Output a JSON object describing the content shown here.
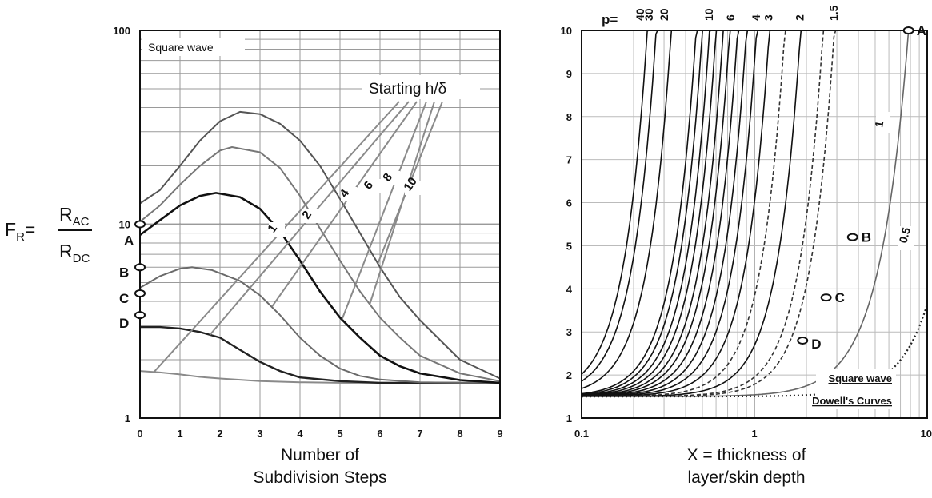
{
  "y_label": {
    "prefix": "F",
    "prefix_sub": "R",
    "eq": "=",
    "num": "R",
    "num_sub": "AC",
    "den": "R",
    "den_sub": "DC"
  },
  "chart_data": [
    {
      "type": "line",
      "y_scale": "log",
      "annotation": "Square wave",
      "legend_title": "Starting h/δ",
      "xlabel": [
        "Number of",
        "Subdivision Steps"
      ],
      "x_ticks": [
        "0",
        "1",
        "2",
        "3",
        "4",
        "5",
        "6",
        "7",
        "8",
        "9"
      ],
      "y_ticks": [
        "1",
        "10",
        "100"
      ],
      "xlim": [
        0,
        9
      ],
      "ylim": [
        1,
        100
      ],
      "grid": true,
      "series": [
        {
          "name": "1",
          "x": [
            0,
            0.5,
            1,
            1.5,
            2,
            3,
            4,
            5,
            6,
            7,
            8,
            9
          ],
          "y": [
            1.75,
            1.72,
            1.68,
            1.63,
            1.6,
            1.55,
            1.53,
            1.52,
            1.52,
            1.52,
            1.52,
            1.52
          ]
        },
        {
          "name": "2",
          "x": [
            0,
            0.5,
            1,
            1.5,
            2,
            2.5,
            3,
            3.5,
            4,
            5,
            6,
            7,
            8,
            9
          ],
          "y": [
            2.95,
            2.95,
            2.9,
            2.78,
            2.6,
            2.25,
            1.95,
            1.75,
            1.62,
            1.55,
            1.52,
            1.52,
            1.52,
            1.52
          ]
        },
        {
          "name": "4",
          "x": [
            0,
            0.5,
            1,
            1.3,
            1.8,
            2.5,
            3,
            3.5,
            4,
            4.5,
            5,
            5.5,
            6,
            7,
            8,
            9
          ],
          "y": [
            4.7,
            5.4,
            5.9,
            6.0,
            5.8,
            5.1,
            4.3,
            3.4,
            2.6,
            2.1,
            1.8,
            1.65,
            1.58,
            1.53,
            1.52,
            1.52
          ]
        },
        {
          "name": "6",
          "x": [
            0,
            0.5,
            1,
            1.5,
            1.9,
            2.5,
            3,
            3.5,
            4,
            4.5,
            5,
            5.5,
            6,
            6.5,
            7,
            8,
            9
          ],
          "y": [
            8.8,
            10.5,
            12.5,
            14,
            14.5,
            13.8,
            12,
            9.2,
            6.5,
            4.5,
            3.3,
            2.6,
            2.1,
            1.85,
            1.7,
            1.57,
            1.52
          ]
        },
        {
          "name": "8",
          "x": [
            0,
            0.5,
            1,
            1.5,
            2,
            2.3,
            3,
            3.5,
            4,
            4.5,
            5,
            5.5,
            6,
            6.5,
            7,
            8,
            9
          ],
          "y": [
            10.3,
            12.5,
            16,
            20,
            24,
            25,
            23.5,
            19.5,
            14,
            9.5,
            6.5,
            4.5,
            3.3,
            2.6,
            2.1,
            1.7,
            1.55
          ]
        },
        {
          "name": "10",
          "x": [
            0,
            0.5,
            1,
            1.5,
            2,
            2.5,
            3,
            3.5,
            4,
            4.5,
            5,
            5.5,
            6,
            6.5,
            7,
            8,
            9
          ],
          "y": [
            12.8,
            15,
            20,
            27,
            34,
            38,
            37,
            33,
            27,
            20,
            13.5,
            9,
            6,
            4.2,
            3.2,
            2.0,
            1.6
          ]
        }
      ],
      "points": [
        {
          "label": "A",
          "x": 0,
          "y": 10
        },
        {
          "label": "B",
          "x": 0,
          "y": 6
        },
        {
          "label": "C",
          "x": 0,
          "y": 4.4
        },
        {
          "label": "D",
          "x": 0,
          "y": 3.4
        }
      ]
    },
    {
      "type": "line",
      "x_scale": "log",
      "xlabel": [
        "X = thickness of",
        "layer/skin depth"
      ],
      "x_ticks": [
        "0.1",
        "1",
        "10"
      ],
      "y_ticks": [
        "1",
        "2",
        "3",
        "4",
        "5",
        "6",
        "7",
        "8",
        "9",
        "10"
      ],
      "xlim": [
        0.1,
        10
      ],
      "ylim": [
        1,
        10
      ],
      "grid": true,
      "p_prefix": "p=",
      "legend": [
        "Square wave",
        "Dowell's Curves"
      ],
      "series": [
        {
          "name": "40",
          "x_at_10": 0.24
        },
        {
          "name": "30",
          "x_at_10": 0.27
        },
        {
          "name": "20",
          "x_at_10": 0.33
        },
        {
          "name": "",
          "x_at_10": 0.46
        },
        {
          "name": "",
          "x_at_10": 0.5
        },
        {
          "name": "",
          "x_at_10": 0.55
        },
        {
          "name": "10",
          "x_at_10": 0.6
        },
        {
          "name": "",
          "x_at_10": 0.66
        },
        {
          "name": "",
          "x_at_10": 0.72
        },
        {
          "name": "6",
          "x_at_10": 0.8
        },
        {
          "name": "",
          "x_at_10": 0.9
        },
        {
          "name": "4",
          "x_at_10": 1.03
        },
        {
          "name": "3",
          "x_at_10": 1.22
        },
        {
          "name": "",
          "x_at_10": 1.5,
          "dashed": true
        },
        {
          "name": "2",
          "x_at_10": 1.85
        },
        {
          "name": "",
          "x_at_10": 2.5,
          "dashed": true
        },
        {
          "name": "1.5",
          "x_at_10": 2.9,
          "dashed": true
        },
        {
          "name": "1",
          "x_at_10": 7.8
        },
        {
          "name": "0.5",
          "x_at_10": 17,
          "dotted": true
        }
      ],
      "points": [
        {
          "label": "A",
          "x": 7.8,
          "y": 10
        },
        {
          "label": "B",
          "x": 3.7,
          "y": 5.2
        },
        {
          "label": "C",
          "x": 2.6,
          "y": 3.8
        },
        {
          "label": "D",
          "x": 1.9,
          "y": 2.8
        }
      ]
    }
  ]
}
